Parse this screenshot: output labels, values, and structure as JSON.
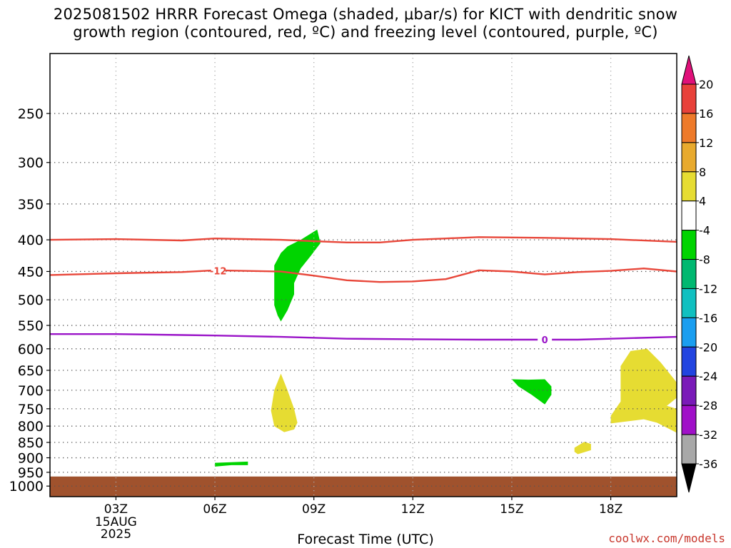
{
  "title": {
    "line1": "2025081502 HRRR Forecast Omega (shaded, μbar/s) for KICT with dendritic snow",
    "line2": "growth region (contoured, red, ºC) and freezing level (contoured, purple, ºC)"
  },
  "credit": "coolwx.com/models",
  "chart_data": {
    "type": "time-height cross section",
    "xlabel": "Forecast Time (UTC)",
    "x_range_hours_utc": [
      1.0,
      20.0
    ],
    "x_ticks": [
      {
        "hour": 3,
        "label": "03Z",
        "sub": [
          "15AUG",
          "2025"
        ]
      },
      {
        "hour": 6,
        "label": "06Z"
      },
      {
        "hour": 9,
        "label": "09Z"
      },
      {
        "hour": 12,
        "label": "12Z"
      },
      {
        "hour": 15,
        "label": "15Z"
      },
      {
        "hour": 18,
        "label": "18Z"
      }
    ],
    "y_axis": "pressure (hPa), log scale, inverted",
    "y_range_hpa": [
      200,
      1040
    ],
    "y_ticks": [
      250,
      300,
      350,
      400,
      450,
      500,
      550,
      600,
      650,
      700,
      750,
      800,
      850,
      900,
      950,
      1000
    ],
    "grid": true,
    "ground": {
      "color": "#a0522d",
      "pressure_hpa": 965
    },
    "contours": [
      {
        "name": "dendritic -10C",
        "color": "#e8473a",
        "points": [
          [
            1.0,
            400
          ],
          [
            3.0,
            399
          ],
          [
            5.0,
            401
          ],
          [
            6.0,
            398
          ],
          [
            8.0,
            400
          ],
          [
            9.0,
            402
          ],
          [
            10.0,
            404
          ],
          [
            11.0,
            404
          ],
          [
            12.0,
            400
          ],
          [
            13.0,
            398
          ],
          [
            14.0,
            396
          ],
          [
            16.0,
            397
          ],
          [
            18.0,
            399
          ],
          [
            20.0,
            403
          ]
        ]
      },
      {
        "name": "dendritic -12C",
        "color": "#e8473a",
        "label": "-12",
        "label_at": [
          6.1,
          449
        ],
        "points": [
          [
            1.0,
            456
          ],
          [
            3.0,
            453
          ],
          [
            5.0,
            451
          ],
          [
            6.0,
            448
          ],
          [
            8.0,
            450
          ],
          [
            9.0,
            457
          ],
          [
            10.0,
            465
          ],
          [
            11.0,
            468
          ],
          [
            12.0,
            467
          ],
          [
            13.0,
            463
          ],
          [
            14.0,
            448
          ],
          [
            15.0,
            450
          ],
          [
            16.0,
            455
          ],
          [
            17.0,
            451
          ],
          [
            18.0,
            449
          ],
          [
            19.0,
            445
          ],
          [
            20.0,
            450
          ]
        ]
      },
      {
        "name": "freezing level 0C",
        "color": "#9a14c8",
        "label": "0",
        "label_at": [
          16.0,
          580
        ],
        "points": [
          [
            1.0,
            568
          ],
          [
            3.0,
            568
          ],
          [
            5.0,
            570
          ],
          [
            6.0,
            571
          ],
          [
            8.0,
            574
          ],
          [
            10.0,
            578
          ],
          [
            12.0,
            579
          ],
          [
            14.0,
            580
          ],
          [
            16.0,
            580
          ],
          [
            17.0,
            580
          ],
          [
            18.0,
            578
          ],
          [
            20.0,
            574
          ]
        ]
      }
    ],
    "omega_regions": [
      {
        "category": "-8 to -4",
        "color": "#00d400",
        "polygon": [
          [
            7.8,
            440
          ],
          [
            7.8,
            480
          ],
          [
            7.8,
            510
          ],
          [
            7.9,
            530
          ],
          [
            8.0,
            542
          ],
          [
            8.2,
            520
          ],
          [
            8.4,
            490
          ],
          [
            8.4,
            470
          ],
          [
            8.6,
            445
          ],
          [
            8.9,
            425
          ],
          [
            9.2,
            405
          ],
          [
            9.1,
            385
          ],
          [
            8.6,
            400
          ],
          [
            8.2,
            410
          ],
          [
            8.0,
            420
          ]
        ]
      },
      {
        "category": "-8 to -4",
        "color": "#00d400",
        "polygon": [
          [
            15.0,
            672
          ],
          [
            15.2,
            690
          ],
          [
            15.6,
            712
          ],
          [
            16.0,
            738
          ],
          [
            16.2,
            712
          ],
          [
            16.2,
            690
          ],
          [
            16.0,
            672
          ],
          [
            15.5,
            673
          ]
        ]
      },
      {
        "category": "-8 to -4",
        "color": "#00d400",
        "polygon": [
          [
            6.0,
            917
          ],
          [
            7.0,
            913
          ],
          [
            7.0,
            925
          ],
          [
            6.5,
            925
          ],
          [
            6.0,
            930
          ]
        ]
      },
      {
        "category": "4 to 8",
        "color": "#e6dc32",
        "polygon": [
          [
            8.0,
            658
          ],
          [
            8.2,
            700
          ],
          [
            8.4,
            750
          ],
          [
            8.5,
            790
          ],
          [
            8.4,
            810
          ],
          [
            8.1,
            818
          ],
          [
            7.8,
            800
          ],
          [
            7.7,
            755
          ],
          [
            7.8,
            700
          ]
        ]
      },
      {
        "category": "4 to 8",
        "color": "#e6dc32",
        "polygon": [
          [
            18.3,
            640
          ],
          [
            18.6,
            605
          ],
          [
            19.1,
            600
          ],
          [
            19.5,
            630
          ],
          [
            20.0,
            680
          ],
          [
            20.0,
            720
          ],
          [
            19.7,
            742
          ],
          [
            20.0,
            750
          ],
          [
            20.0,
            820
          ],
          [
            19.4,
            790
          ],
          [
            19.0,
            780
          ],
          [
            18.0,
            792
          ],
          [
            18.0,
            770
          ],
          [
            18.3,
            730
          ],
          [
            18.3,
            680
          ]
        ]
      },
      {
        "category": "4 to 8",
        "color": "#e6dc32",
        "polygon": [
          [
            16.9,
            867
          ],
          [
            17.2,
            848
          ],
          [
            17.4,
            855
          ],
          [
            17.4,
            875
          ],
          [
            17.0,
            888
          ],
          [
            16.9,
            880
          ]
        ]
      }
    ],
    "colorbar": {
      "labels": [
        "20",
        "16",
        "12",
        "8",
        "4",
        "-4",
        "-8",
        "-12",
        "-16",
        "-20",
        "-24",
        "-28",
        "-32",
        "-36"
      ],
      "colors": [
        "#e8413a",
        "#ee7a2a",
        "#e8aa2e",
        "#e6dc32",
        "#ffffff",
        "#00d400",
        "#00b870",
        "#10c0c0",
        "#1a9ef0",
        "#2244e0",
        "#7a1ab8",
        "#a010c8",
        "#a8a8a8"
      ],
      "top_arrow_color": "#e0107a",
      "bottom_arrow_color": "#000000"
    }
  }
}
